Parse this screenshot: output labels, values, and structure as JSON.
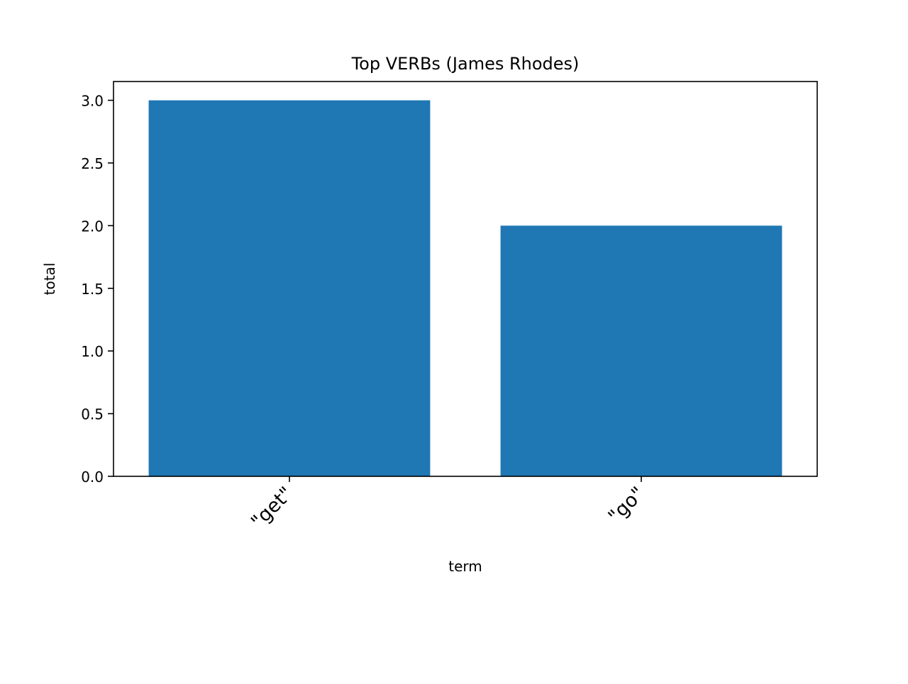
{
  "chart_data": {
    "type": "bar",
    "title": "Top VERBs (James Rhodes)",
    "xlabel": "term",
    "ylabel": "total",
    "categories": [
      "\"get\"",
      "\"go\""
    ],
    "values": [
      3,
      2
    ],
    "ylim": [
      0,
      3.15
    ],
    "yticks": [
      "0.0",
      "0.5",
      "1.0",
      "1.5",
      "2.0",
      "2.5",
      "3.0"
    ],
    "grid": false,
    "legend": "none",
    "bar_color": "#1f77b4"
  }
}
